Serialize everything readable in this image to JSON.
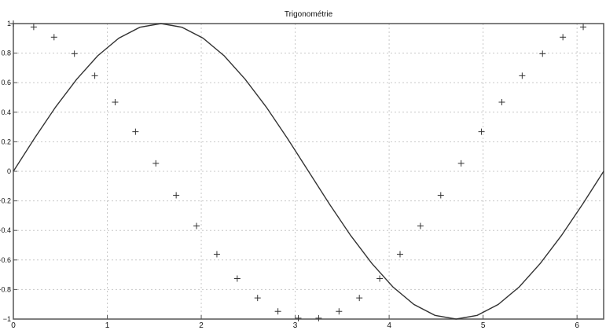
{
  "chart_data": {
    "type": "line",
    "title": "Trigonométrie",
    "xlabel": "",
    "ylabel": "",
    "xlim": [
      0,
      6.2832
    ],
    "ylim": [
      -1,
      1
    ],
    "grid": true,
    "x_ticks": [
      0,
      1,
      2,
      3,
      4,
      5,
      6
    ],
    "y_ticks": [
      -1,
      -0.8,
      -0.6,
      -0.4,
      -0.2,
      0,
      0.2,
      0.4,
      0.6,
      0.8,
      1
    ],
    "x_tick_labels": [
      "0",
      "1",
      "2",
      "3",
      "4",
      "5",
      "6"
    ],
    "y_tick_labels": [
      "−1",
      "−0.8",
      "−0.6",
      "−0.4",
      "−0.2",
      "0",
      "0.2",
      "0.4",
      "0.6",
      "0.8",
      "1"
    ],
    "series": [
      {
        "style": "line",
        "color": "#333333",
        "x": [
          0,
          0.2244,
          0.4488,
          0.6732,
          0.8976,
          1.122,
          1.3464,
          1.5708,
          1.7952,
          2.0196,
          2.244,
          2.4684,
          2.6928,
          2.9172,
          3.1416,
          3.366,
          3.5904,
          3.8148,
          4.0392,
          4.2636,
          4.488,
          4.7124,
          4.9368,
          5.1612,
          5.3856,
          5.61,
          5.8344,
          6.0588,
          6.2832
        ],
        "y": [
          0,
          0.223,
          0.434,
          0.623,
          0.782,
          0.901,
          0.975,
          1,
          0.975,
          0.901,
          0.782,
          0.623,
          0.434,
          0.223,
          0,
          -0.223,
          -0.434,
          -0.623,
          -0.782,
          -0.901,
          -0.975,
          -1,
          -0.975,
          -0.901,
          -0.782,
          -0.623,
          -0.434,
          -0.223,
          0
        ]
      },
      {
        "style": "marker",
        "marker": "+",
        "color": "#333333",
        "x": [
          0,
          0.2166,
          0.4333,
          0.6499,
          0.8666,
          1.0832,
          1.2999,
          1.5165,
          1.7331,
          1.9498,
          2.1664,
          2.3831,
          2.5997,
          2.8164,
          3.033,
          3.2496,
          3.4663,
          3.6829,
          3.8996,
          4.1162,
          4.3329,
          4.5495,
          4.7661,
          4.9828,
          5.1994,
          5.4161,
          5.6327,
          5.8494,
          6.066
        ],
        "y": [
          1,
          0.977,
          0.908,
          0.796,
          0.647,
          0.468,
          0.268,
          0.054,
          -0.162,
          -0.37,
          -0.561,
          -0.726,
          -0.857,
          -0.948,
          -0.994,
          -0.994,
          -0.948,
          -0.857,
          -0.726,
          -0.561,
          -0.37,
          -0.162,
          0.054,
          0.268,
          0.468,
          0.647,
          0.796,
          0.908,
          0.977
        ]
      }
    ]
  }
}
